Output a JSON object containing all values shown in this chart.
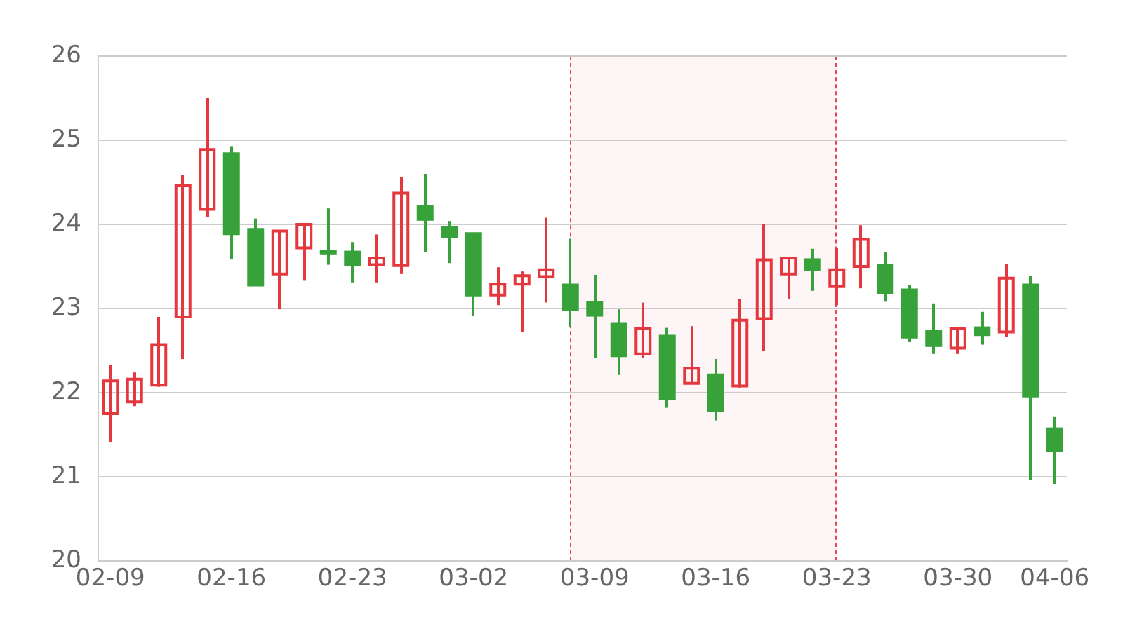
{
  "chart_data": {
    "type": "candlestick",
    "categories": [
      "02-09",
      null,
      null,
      null,
      null,
      "02-16",
      null,
      null,
      null,
      null,
      "02-23",
      null,
      null,
      null,
      null,
      "03-02",
      null,
      null,
      null,
      null,
      "03-09",
      null,
      null,
      null,
      null,
      "03-16",
      null,
      null,
      null,
      null,
      "03-23",
      null,
      null,
      null,
      null,
      "03-30",
      null,
      null,
      null,
      "04-06"
    ],
    "ohlc": [
      [
        21.75,
        22.33,
        21.41,
        22.14
      ],
      [
        21.89,
        22.24,
        21.84,
        22.16
      ],
      [
        22.09,
        22.9,
        22.07,
        22.57
      ],
      [
        22.9,
        24.59,
        22.4,
        24.46
      ],
      [
        24.18,
        25.5,
        24.09,
        24.89
      ],
      [
        24.84,
        24.93,
        23.59,
        23.89
      ],
      [
        23.94,
        24.07,
        23.27,
        23.28
      ],
      [
        23.41,
        23.93,
        22.99,
        23.92
      ],
      [
        23.72,
        24.01,
        23.33,
        24.0
      ],
      [
        23.68,
        24.19,
        23.52,
        23.66
      ],
      [
        23.67,
        23.79,
        23.31,
        23.52
      ],
      [
        23.52,
        23.88,
        23.31,
        23.6
      ],
      [
        23.51,
        24.56,
        23.41,
        24.37
      ],
      [
        24.21,
        24.6,
        23.67,
        24.06
      ],
      [
        23.96,
        24.04,
        23.54,
        23.85
      ],
      [
        23.89,
        23.89,
        22.91,
        23.16
      ],
      [
        23.16,
        23.49,
        23.04,
        23.29
      ],
      [
        23.29,
        23.44,
        22.72,
        23.39
      ],
      [
        23.38,
        24.08,
        23.07,
        23.46
      ],
      [
        23.28,
        23.83,
        22.78,
        22.99
      ],
      [
        23.07,
        23.4,
        22.41,
        22.92
      ],
      [
        22.82,
        22.99,
        22.21,
        22.44
      ],
      [
        22.46,
        23.07,
        22.41,
        22.76
      ],
      [
        22.67,
        22.77,
        21.82,
        21.93
      ],
      [
        22.11,
        22.79,
        22.11,
        22.29
      ],
      [
        22.21,
        22.4,
        21.67,
        21.79
      ],
      [
        22.08,
        23.11,
        22.06,
        22.86
      ],
      [
        22.88,
        24.0,
        22.5,
        23.58
      ],
      [
        23.41,
        23.61,
        23.11,
        23.6
      ],
      [
        23.58,
        23.71,
        23.21,
        23.46
      ],
      [
        23.26,
        23.72,
        23.04,
        23.46
      ],
      [
        23.5,
        23.99,
        23.24,
        23.82
      ],
      [
        23.51,
        23.67,
        23.08,
        23.19
      ],
      [
        23.22,
        23.28,
        22.6,
        22.66
      ],
      [
        22.73,
        23.06,
        22.46,
        22.56
      ],
      [
        22.53,
        22.76,
        22.46,
        22.76
      ],
      [
        22.77,
        22.96,
        22.57,
        22.69
      ],
      [
        22.72,
        23.53,
        22.66,
        23.36
      ],
      [
        23.28,
        23.39,
        20.96,
        21.96
      ],
      [
        21.57,
        21.71,
        20.91,
        21.31
      ]
    ],
    "colors": [
      "#e5383e",
      "#e5383e",
      "#e5383e",
      "#e5383e",
      "#e5383e",
      "#37a23a",
      "#37a23a",
      "#e5383e",
      "#e5383e",
      "#37a23a",
      "#37a23a",
      "#e5383e",
      "#e5383e",
      "#37a23a",
      "#37a23a",
      "#37a23a",
      "#e5383e",
      "#e5383e",
      "#e5383e",
      "#37a23a",
      "#37a23a",
      "#37a23a",
      "#e5383e",
      "#37a23a",
      "#e5383e",
      "#37a23a",
      "#e5383e",
      "#e5383e",
      "#e5383e",
      "#37a23a",
      "#e5383e",
      "#e5383e",
      "#37a23a",
      "#37a23a",
      "#37a23a",
      "#e5383e",
      "#37a23a",
      "#e5383e",
      "#37a23a",
      "#37a23a"
    ],
    "ylim": [
      20,
      26
    ],
    "yticks": [
      20,
      21,
      22,
      23,
      24,
      25,
      26
    ],
    "grid": "y"
  }
}
